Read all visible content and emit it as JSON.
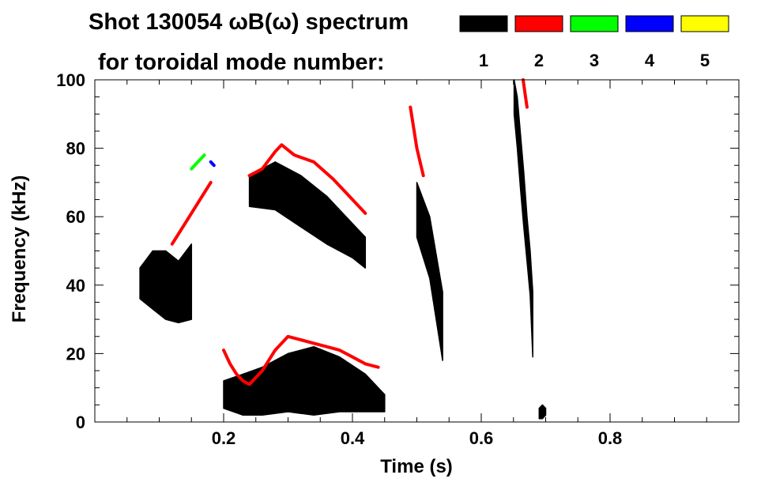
{
  "chart_data": {
    "type": "spectrogram",
    "title_line1": "Shot 130054 ωB(ω) spectrum",
    "title_line2": "for toroidal mode number:",
    "xlabel": "Time (s)",
    "ylabel": "Frequency (kHz)",
    "xlim": [
      0.0,
      1.0
    ],
    "ylim": [
      0,
      100
    ],
    "x_ticks": [
      {
        "value": 0.2,
        "label": "0.2"
      },
      {
        "value": 0.4,
        "label": "0.4"
      },
      {
        "value": 0.6,
        "label": "0.6"
      },
      {
        "value": 0.8,
        "label": "0.8"
      }
    ],
    "y_ticks": [
      {
        "value": 0,
        "label": "0"
      },
      {
        "value": 20,
        "label": "20"
      },
      {
        "value": 40,
        "label": "40"
      },
      {
        "value": 60,
        "label": "60"
      },
      {
        "value": 80,
        "label": "80"
      },
      {
        "value": 100,
        "label": "100"
      }
    ],
    "legend": [
      {
        "mode": "1",
        "color": "#000000"
      },
      {
        "mode": "2",
        "color": "#ff0000"
      },
      {
        "mode": "3",
        "color": "#00ff00"
      },
      {
        "mode": "4",
        "color": "#0000ff"
      },
      {
        "mode": "5",
        "color": "#ffff00"
      }
    ],
    "legend_placement": "top-right",
    "series": [
      {
        "mode": 1,
        "shape": "band",
        "x": [
          0.07,
          0.09,
          0.11,
          0.13,
          0.15
        ],
        "y_low": [
          36,
          33,
          30,
          29,
          30
        ],
        "y_high": [
          45,
          50,
          50,
          47,
          52
        ]
      },
      {
        "mode": 1,
        "shape": "band",
        "x": [
          0.2,
          0.23,
          0.26,
          0.3,
          0.34,
          0.38,
          0.42,
          0.45
        ],
        "y_low": [
          4,
          2,
          2,
          3,
          2,
          3,
          3,
          3
        ],
        "y_high": [
          12,
          14,
          16,
          20,
          22,
          19,
          14,
          8
        ]
      },
      {
        "mode": 1,
        "shape": "band",
        "x": [
          0.24,
          0.28,
          0.32,
          0.36,
          0.4,
          0.42
        ],
        "y_low": [
          63,
          62,
          57,
          52,
          48,
          45
        ],
        "y_high": [
          72,
          76,
          72,
          66,
          58,
          54
        ]
      },
      {
        "mode": 1,
        "shape": "band",
        "x": [
          0.651,
          0.656,
          0.661,
          0.666,
          0.671,
          0.676,
          0.68
        ],
        "y_low": [
          90,
          80,
          68,
          57,
          47,
          37,
          19
        ],
        "y_high": [
          100,
          95,
          84,
          73,
          60,
          50,
          38
        ]
      },
      {
        "mode": 1,
        "shape": "band",
        "x": [
          0.69,
          0.695,
          0.7
        ],
        "y_low": [
          1,
          1,
          2
        ],
        "y_high": [
          4,
          5,
          4
        ]
      },
      {
        "mode": 1,
        "shape": "band",
        "x": [
          0.5,
          0.52,
          0.54
        ],
        "y_low": [
          54,
          42,
          18
        ],
        "y_high": [
          70,
          60,
          38
        ]
      },
      {
        "mode": 2,
        "shape": "line",
        "x": [
          0.12,
          0.14,
          0.16,
          0.18
        ],
        "y": [
          52,
          58,
          64,
          70
        ]
      },
      {
        "mode": 2,
        "shape": "line",
        "x": [
          0.24,
          0.26,
          0.28,
          0.29,
          0.31,
          0.34,
          0.37,
          0.39,
          0.42
        ],
        "y": [
          72,
          74,
          79,
          81,
          78,
          76,
          71,
          67,
          61
        ]
      },
      {
        "mode": 2,
        "shape": "line",
        "x": [
          0.2,
          0.21,
          0.22,
          0.23,
          0.24,
          0.26,
          0.28,
          0.3,
          0.32,
          0.34,
          0.36,
          0.38,
          0.4,
          0.42,
          0.44
        ],
        "y": [
          21,
          17,
          14,
          12,
          11,
          15,
          21,
          25,
          24,
          23,
          22,
          21,
          19,
          17,
          16
        ]
      },
      {
        "mode": 2,
        "shape": "line",
        "x": [
          0.49,
          0.495,
          0.5,
          0.505,
          0.51
        ],
        "y": [
          92,
          86,
          80,
          76,
          72
        ]
      },
      {
        "mode": 2,
        "shape": "line",
        "x": [
          0.665,
          0.668,
          0.671
        ],
        "y": [
          100,
          96,
          92
        ]
      },
      {
        "mode": 3,
        "shape": "line",
        "x": [
          0.15,
          0.16,
          0.17
        ],
        "y": [
          74,
          76,
          78
        ]
      },
      {
        "mode": 4,
        "shape": "line",
        "x": [
          0.18,
          0.185
        ],
        "y": [
          76,
          75
        ]
      }
    ]
  }
}
